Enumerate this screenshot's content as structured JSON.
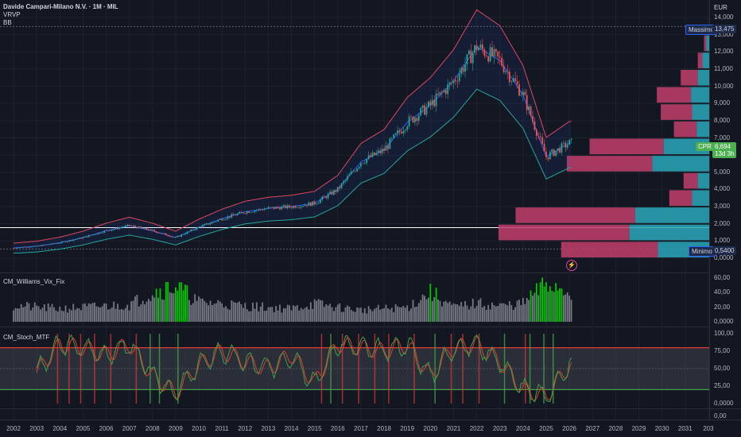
{
  "header": {
    "title": "Davide Campari-Milano N.V. · 1M · MIL",
    "indicator_1": "VRVP",
    "indicator_2": "BB",
    "currency": "EUR"
  },
  "price_axis": [
    "14,000",
    "13,000",
    "12,000",
    "11,000",
    "10,000",
    "9,000",
    "8,000",
    "7,000",
    "6,000",
    "5,000",
    "4,000",
    "3,000",
    "2,000",
    "1,000",
    "0,0000"
  ],
  "tags": {
    "max_label": "Massimo",
    "max_value": "13,475",
    "min_label": "Minimo",
    "min_value": "0,5400",
    "cpr_label": "CPR",
    "cpr_value": "6,694",
    "cpr_countdown": "13d 3h"
  },
  "panes": {
    "vix_title": "CM_Williams_Vix_Fix",
    "vix_axis": [
      "60,00",
      "40,00",
      "20,00",
      "0,0000"
    ],
    "stoch_title": "CM_Stoch_MTF",
    "stoch_axis": [
      "100,00",
      "75,00",
      "50,00",
      "25,00",
      "0,0000"
    ],
    "extra_axis": "0,00"
  },
  "time_axis": [
    "2002",
    "2003",
    "2004",
    "2005",
    "2006",
    "2007",
    "2008",
    "2009",
    "2010",
    "2011",
    "2012",
    "2013",
    "2014",
    "2015",
    "2016",
    "2017",
    "2018",
    "2019",
    "2020",
    "2021",
    "2022",
    "2023",
    "2024",
    "2025",
    "2026",
    "2027",
    "2028",
    "2029",
    "2030",
    "2031",
    "203"
  ],
  "colors": {
    "background": "#131722",
    "up": "#26a69a",
    "down": "#ef5350",
    "bb_upper": "#e0465f",
    "bb_basis": "#2962ff",
    "bb_lower": "#26a69a",
    "vrvp_up": "#2aa7b8",
    "vrvp_down": "#c2406b",
    "vix_high": "#00c800",
    "stoch_band": "#555a64"
  },
  "chart_data": [
    {
      "type": "line",
      "title": "Davide Campari-Milano N.V. · 1M · MIL",
      "ylim": [
        0,
        14
      ],
      "x": [
        2002,
        2003,
        2004,
        2005,
        2006,
        2007,
        2008,
        2009,
        2010,
        2011,
        2012,
        2013,
        2014,
        2015,
        2016,
        2017,
        2018,
        2019,
        2020,
        2021,
        2022,
        2023,
        2024,
        2025,
        2026
      ],
      "series": [
        {
          "values": [
            0.6,
            0.7,
            0.9,
            1.2,
            1.6,
            1.9,
            1.6,
            1.2,
            1.8,
            2.3,
            2.7,
            2.9,
            3.0,
            3.2,
            4.0,
            5.6,
            6.3,
            7.9,
            8.9,
            10.3,
            12.3,
            11.5,
            9.5,
            5.9,
            6.7
          ]
        }
      ],
      "max": 13.475,
      "min": 0.54,
      "last": 6.694
    },
    {
      "type": "bar",
      "title": "VRVP",
      "levels": [
        12.5,
        11.5,
        10.5,
        9.5,
        8.5,
        7.5,
        6.5,
        5.5,
        4.5,
        3.5,
        2.5,
        1.5,
        0.5
      ],
      "up_volume": [
        5,
        12,
        20,
        32,
        30,
        22,
        80,
        100,
        20,
        30,
        130,
        140,
        90
      ],
      "down_volume": [
        4,
        8,
        30,
        60,
        55,
        40,
        130,
        150,
        25,
        40,
        210,
        230,
        170
      ]
    },
    {
      "type": "bar",
      "title": "CM_Williams_Vix_Fix",
      "ylim": [
        0,
        60
      ],
      "x": [
        2002,
        2003,
        2004,
        2005,
        2006,
        2007,
        2008,
        2009,
        2010,
        2011,
        2012,
        2013,
        2014,
        2015,
        2016,
        2017,
        2018,
        2019,
        2020,
        2021,
        2022,
        2023,
        2024,
        2025,
        2026
      ],
      "values": [
        25,
        22,
        20,
        22,
        24,
        26,
        45,
        55,
        30,
        28,
        24,
        22,
        20,
        28,
        22,
        18,
        20,
        22,
        45,
        22,
        28,
        24,
        28,
        58,
        48
      ]
    },
    {
      "type": "line",
      "title": "CM_Stoch_MTF",
      "ylim": [
        0,
        100
      ],
      "x": [
        2002,
        2003,
        2004,
        2005,
        2006,
        2007,
        2008,
        2009,
        2010,
        2011,
        2012,
        2013,
        2014,
        2015,
        2016,
        2017,
        2018,
        2019,
        2020,
        2021,
        2022,
        2023,
        2024,
        2025,
        2026
      ],
      "series": [
        {
          "values": [
            60,
            45,
            85,
            80,
            70,
            85,
            40,
            15,
            55,
            75,
            60,
            50,
            70,
            30,
            85,
            80,
            75,
            85,
            40,
            80,
            85,
            60,
            20,
            10,
            55
          ]
        }
      ],
      "overbought": 80,
      "oversold": 20
    }
  ]
}
